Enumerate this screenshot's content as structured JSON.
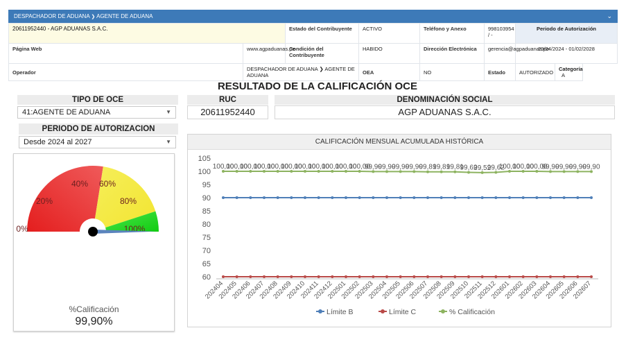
{
  "header": {
    "breadcrumb_a": "DESPACHADOR DE ADUANA",
    "breadcrumb_sep": "❯",
    "breadcrumb_b": "AGENTE DE ADUANA",
    "collapse_icon": "chevron-down-icon"
  },
  "info": {
    "ruc_name": "20611952440 - AGP ADUANAS S.A.C.",
    "estado_label": "Estado del Contribuyente",
    "estado_value": "ACTIVO",
    "telefono_label": "Teléfono y Anexo",
    "telefono_value": "998103954 / -",
    "periodo_label": "Periodo de Autorización",
    "pagina_label": "Página Web",
    "pagina_value": "www.agpaduanas.pe",
    "condicion_label": "Condición del Contribuyente",
    "condicion_value": "HABIDO",
    "correo_label": "Dirección Electrónica",
    "correo_value": "gerencia@agpaduanas.pe",
    "periodo_value": "29/04/2024 - 01/02/2028",
    "operador_label": "Operador",
    "operador_value": "DESPACHADOR DE ADUANA ❯ AGENTE DE ADUANA",
    "oea_label": "OEA",
    "oea_value": "NO",
    "estado2_label": "Estado",
    "estado2_value": "AUTORIZADO",
    "categoria_label": "Categoría",
    "categoria_value": "A"
  },
  "main_title": "RESULTADO DE LA CALIFICACIÓN OCE",
  "tipo_oce": {
    "label": "TIPO DE OCE",
    "selected": "41:AGENTE DE ADUANA"
  },
  "ruc": {
    "label": "RUC",
    "value": "20611952440"
  },
  "denominacion": {
    "label": "DENOMINACIÓN SOCIAL",
    "value": "AGP ADUANAS S.A.C."
  },
  "periodo": {
    "label": "PERIODO DE AUTORIZACION",
    "selected": "Desde 2024 al 2027"
  },
  "gauge": {
    "value": 99.9,
    "ticks": [
      "0%",
      "20%",
      "40%",
      "60%",
      "80%",
      "100%"
    ],
    "caption": "%Calificación",
    "value_text": "99,90%",
    "colors": {
      "red": "#e41e1e",
      "yellow": "#f2ea3e",
      "green": "#19d419",
      "needle": "#5b84bd"
    }
  },
  "chart_data": {
    "type": "line",
    "title": "CALIFICACIÓN MENSUAL ACUMULADA HISTÓRICA",
    "categories": [
      "202404",
      "202405",
      "202406",
      "202407",
      "202408",
      "202409",
      "202410",
      "202411",
      "202412",
      "202501",
      "202502",
      "202503",
      "202504",
      "202505",
      "202506",
      "202507",
      "202508",
      "202509",
      "202510",
      "202511",
      "202512",
      "202601",
      "202602",
      "202603",
      "202604",
      "202605",
      "202606",
      "202607"
    ],
    "ylim": [
      60,
      105
    ],
    "yticks": [
      60,
      65,
      70,
      75,
      80,
      85,
      90,
      95,
      100,
      105
    ],
    "series": [
      {
        "name": "Límite B",
        "color": "#4f7fb8",
        "values": [
          90,
          90,
          90,
          90,
          90,
          90,
          90,
          90,
          90,
          90,
          90,
          90,
          90,
          90,
          90,
          90,
          90,
          90,
          90,
          90,
          90,
          90,
          90,
          90,
          90,
          90,
          90,
          90
        ]
      },
      {
        "name": "Límite C",
        "color": "#b94a48",
        "values": [
          60,
          60,
          60,
          60,
          60,
          60,
          60,
          60,
          60,
          60,
          60,
          60,
          60,
          60,
          60,
          60,
          60,
          60,
          60,
          60,
          60,
          60,
          60,
          60,
          60,
          60,
          60,
          60
        ]
      },
      {
        "name": "% Calificación",
        "color": "#8db360",
        "values": [
          100,
          100,
          100,
          100,
          100,
          100,
          100,
          100,
          100,
          100,
          100,
          99.9,
          99.9,
          99.9,
          99.9,
          99.81,
          99.81,
          99.81,
          99.62,
          99.52,
          99.62,
          100,
          100,
          100,
          99.9,
          99.9,
          99.9,
          99.9
        ],
        "labels": [
          "100,00",
          "100,00",
          "100,00",
          "100,00",
          "100,00",
          "100,00",
          "100,00",
          "100,00",
          "100,00",
          "100,00",
          "100,00",
          "99,90",
          "99,90",
          "99,90",
          "99,90",
          "99,81",
          "99,81",
          "99,81",
          "99,62",
          "99,52",
          "99,62",
          "100,00",
          "100,00",
          "100,00",
          "99,90",
          "99,90",
          "99,90",
          "99,90"
        ]
      }
    ],
    "legend_position": "bottom",
    "grid": false
  }
}
